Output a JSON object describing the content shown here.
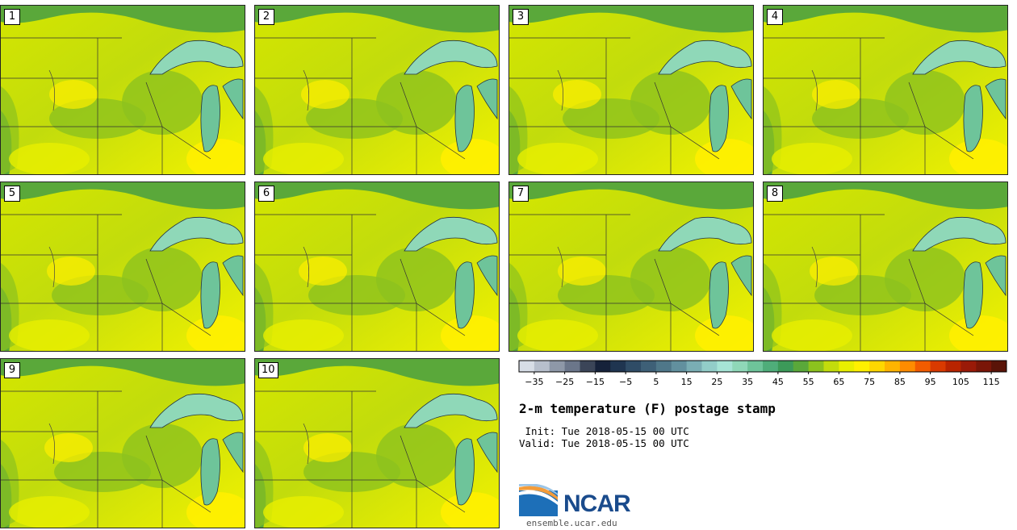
{
  "chart_data": {
    "type": "heatmap",
    "title": "2-m temperature (F) postage stamp",
    "panels": [
      "1",
      "2",
      "3",
      "4",
      "5",
      "6",
      "7",
      "8",
      "9",
      "10"
    ],
    "colorbar": {
      "ticks": [
        "−35",
        "−25",
        "−15",
        "−5",
        "5",
        "15",
        "25",
        "35",
        "45",
        "55",
        "65",
        "75",
        "85",
        "95",
        "105",
        "115"
      ],
      "colors": [
        "#d7dde6",
        "#b7bfcc",
        "#8e98a8",
        "#6b768a",
        "#3b4558",
        "#16223a",
        "#1f3550",
        "#2f4c66",
        "#3e6077",
        "#4f7789",
        "#62909e",
        "#7aaeb4",
        "#92cdc8",
        "#a6e4d6",
        "#8fd8b8",
        "#6ec49a",
        "#4fad7a",
        "#3c9a59",
        "#5aa83a",
        "#8cc21e",
        "#c2dc0c",
        "#e8ef00",
        "#fff000",
        "#ffd700",
        "#ffb400",
        "#ff8c00",
        "#f25c00",
        "#d93a00",
        "#b82400",
        "#9a1a08",
        "#7a1608",
        "#5a1408"
      ]
    },
    "init": " Init: Tue 2018-05-15 00 UTC",
    "valid": "Valid: Tue 2018-05-15 00 UTC",
    "logo": {
      "name": "NCAR",
      "url": "ensemble.ucar.edu"
    }
  }
}
